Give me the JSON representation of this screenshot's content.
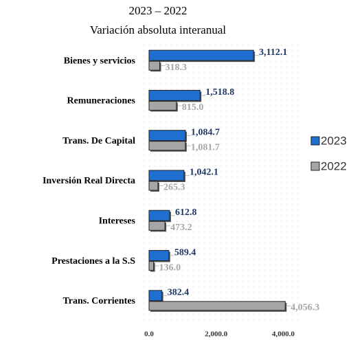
{
  "chart_data": {
    "type": "bar",
    "orientation": "horizontal",
    "subtitle": [
      "2023 – 2022",
      "Variación absoluta interanual"
    ],
    "categories": [
      "Bienes y servicios",
      "Remuneraciones",
      "Trans. De Capital",
      "Inversión Real Directa",
      "Intereses",
      "Prestaciones a la S.S",
      "Trans. Corrientes"
    ],
    "series": [
      {
        "name": "2023",
        "color": "#1f6fd1",
        "label_color": "#1f3864",
        "values": [
          3112.1,
          1518.8,
          1084.7,
          1042.1,
          612.8,
          589.4,
          382.4
        ],
        "value_labels": [
          "3,112.1",
          "1,518.8",
          "1,084.7",
          "1,042.1",
          "612.8",
          "589.4",
          "382.4"
        ]
      },
      {
        "name": "2022",
        "color": "#a6a6a6",
        "label_color": "#a6a6a6",
        "values": [
          318.3,
          815.0,
          1081.7,
          265.3,
          473.2,
          136.0,
          4056.3
        ],
        "value_labels": [
          "318.3",
          "815.0",
          "1,081.7",
          "265.3",
          "473.2",
          "136.0",
          "4,056.3"
        ]
      }
    ],
    "xlim": [
      0,
      4500
    ],
    "xticks": [
      {
        "value": 0,
        "label": "0.0"
      },
      {
        "value": 2000,
        "label": "2,000.0"
      },
      {
        "value": 4000,
        "label": "4,000.0"
      }
    ],
    "legend": "right"
  }
}
